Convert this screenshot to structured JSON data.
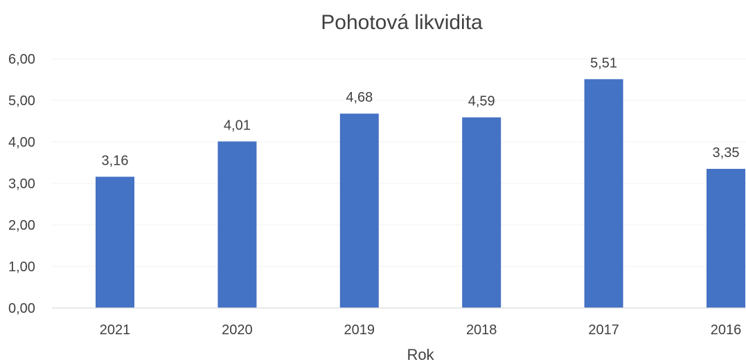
{
  "chart_data": {
    "type": "bar",
    "title": "Pohotová likvidita",
    "xlabel": "Rok",
    "ylabel": "",
    "categories": [
      "2021",
      "2020",
      "2019",
      "2018",
      "2017",
      "2016"
    ],
    "values": [
      3.16,
      4.01,
      4.68,
      4.59,
      5.51,
      3.35
    ],
    "data_labels": [
      "3,16",
      "4,01",
      "4,68",
      "4,59",
      "5,51",
      "3,35"
    ],
    "ylim": [
      0,
      6
    ],
    "yticks": [
      0,
      1,
      2,
      3,
      4,
      5,
      6
    ],
    "ytick_labels": [
      "0,00",
      "1,00",
      "2,00",
      "3,00",
      "4,00",
      "5,00",
      "6,00"
    ],
    "grid": true,
    "legend": "none",
    "colors": {
      "bar": "#4472C4",
      "text": "#404040"
    }
  }
}
